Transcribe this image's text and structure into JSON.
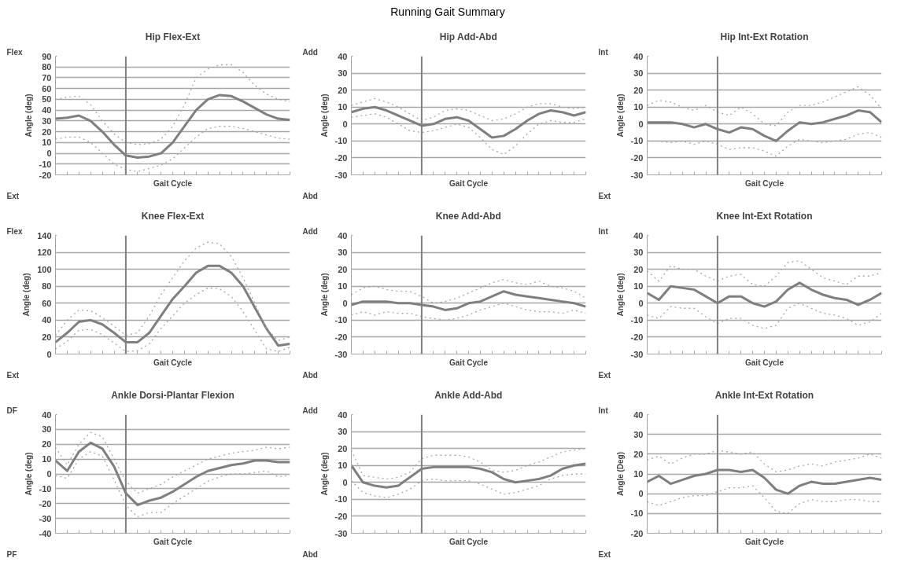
{
  "chart_data": [
    {
      "type": "line",
      "title": "Hip Flex-Ext",
      "xlabel": "Gait Cycle",
      "ylabel": "Angle (deg)",
      "annotations": [
        "Flex",
        "Ext",
        "Running Gait Summary"
      ],
      "categories": [
        null,
        null,
        null,
        null,
        null,
        null,
        null,
        null,
        null,
        null,
        null,
        null,
        null,
        null,
        null,
        null,
        null,
        null,
        null,
        null,
        null
      ],
      "ylim": [
        -20,
        90
      ],
      "yticks": [
        -20,
        -10,
        0,
        10,
        20,
        30,
        40,
        50,
        60,
        70,
        80,
        90
      ],
      "tick_labels": "y",
      "grid": "y",
      "series": [
        {
          "color": "#7f7f7f",
          "line_style": "solid",
          "values": [
            32,
            33,
            35,
            30,
            20,
            8,
            -2,
            -4,
            -3,
            0,
            10,
            25,
            40,
            50,
            54,
            53,
            48,
            42,
            36,
            32,
            31
          ]
        },
        {
          "color": "#a6a6a6",
          "line_style": "dotted",
          "values": [
            50,
            52,
            53,
            45,
            30,
            18,
            10,
            8,
            9,
            13,
            25,
            45,
            70,
            78,
            82,
            82,
            75,
            63,
            55,
            50,
            48
          ]
        },
        {
          "color": "#a6a6a6",
          "line_style": "dotted",
          "values": [
            13,
            15,
            15,
            10,
            0,
            -10,
            -15,
            -17,
            -14,
            -11,
            -5,
            5,
            15,
            23,
            25,
            25,
            23,
            20,
            17,
            14,
            13
          ]
        }
      ]
    },
    {
      "type": "line",
      "title": "Hip Add-Abd",
      "xlabel": "Gait Cycle",
      "ylabel": "Angle (deg)",
      "annotations": [
        "Add",
        "Abd"
      ],
      "categories": [
        null,
        null,
        null,
        null,
        null,
        null,
        null,
        null,
        null,
        null,
        null,
        null,
        null,
        null,
        null,
        null,
        null,
        null,
        null,
        null,
        null
      ],
      "ylim": [
        -30,
        40
      ],
      "yticks": [
        -30,
        -20,
        -10,
        0,
        10,
        20,
        30,
        40
      ],
      "tick_labels": "y",
      "grid": "y",
      "series": [
        {
          "color": "#7f7f7f",
          "line_style": "solid",
          "values": [
            7,
            9,
            10,
            8,
            5,
            2,
            -1,
            0,
            3,
            4,
            2,
            -3,
            -8,
            -7,
            -3,
            2,
            6,
            8,
            7,
            5,
            7
          ]
        },
        {
          "color": "#a6a6a6",
          "line_style": "dotted",
          "values": [
            11,
            13,
            15,
            13,
            10,
            6,
            2,
            4,
            8,
            9,
            8,
            5,
            2,
            3,
            6,
            10,
            12,
            12,
            10,
            9,
            10
          ]
        },
        {
          "color": "#a6a6a6",
          "line_style": "dotted",
          "values": [
            4,
            5,
            6,
            4,
            0,
            -4,
            -5,
            -4,
            -2,
            0,
            -2,
            -8,
            -15,
            -18,
            -13,
            -6,
            0,
            2,
            1,
            1,
            3
          ]
        }
      ]
    },
    {
      "type": "line",
      "title": "Hip Int-Ext Rotation",
      "xlabel": "Gait Cycle",
      "ylabel": "Angle (deg)",
      "annotations": [
        "Int",
        "Ext"
      ],
      "categories": [
        null,
        null,
        null,
        null,
        null,
        null,
        null,
        null,
        null,
        null,
        null,
        null,
        null,
        null,
        null,
        null,
        null,
        null,
        null,
        null,
        null
      ],
      "ylim": [
        -30,
        40
      ],
      "yticks": [
        -30,
        -20,
        -10,
        0,
        10,
        20,
        30,
        40
      ],
      "tick_labels": "y",
      "grid": "y",
      "series": [
        {
          "color": "#7f7f7f",
          "line_style": "solid",
          "values": [
            1,
            1,
            1,
            0,
            -2,
            0,
            -3,
            -5,
            -2,
            -3,
            -7,
            -10,
            -4,
            1,
            0,
            1,
            3,
            5,
            8,
            7,
            1
          ]
        },
        {
          "color": "#a6a6a6",
          "line_style": "dotted",
          "values": [
            11,
            14,
            13,
            10,
            8,
            11,
            7,
            5,
            10,
            6,
            0,
            -1,
            7,
            11,
            11,
            13,
            16,
            19,
            22,
            17,
            9
          ]
        },
        {
          "color": "#a6a6a6",
          "line_style": "dotted",
          "values": [
            -10,
            -10,
            -11,
            -10,
            -12,
            -10,
            -12,
            -15,
            -14,
            -14,
            -16,
            -19,
            -13,
            -9,
            -10,
            -11,
            -10,
            -9,
            -6,
            -5,
            -8
          ]
        }
      ]
    },
    {
      "type": "line",
      "title": "Knee Flex-Ext",
      "xlabel": "Gait Cycle",
      "ylabel": "Angle (deg)",
      "annotations": [
        "Flex",
        "Ext"
      ],
      "categories": [
        null,
        null,
        null,
        null,
        null,
        null,
        null,
        null,
        null,
        null,
        null,
        null,
        null,
        null,
        null,
        null,
        null,
        null,
        null,
        null,
        null
      ],
      "ylim": [
        0,
        140
      ],
      "yticks": [
        0,
        20,
        40,
        60,
        80,
        100,
        120,
        140
      ],
      "tick_labels": "y",
      "grid": "y",
      "series": [
        {
          "color": "#7f7f7f",
          "line_style": "solid",
          "values": [
            14,
            25,
            38,
            40,
            35,
            25,
            14,
            14,
            25,
            45,
            65,
            80,
            96,
            104,
            104,
            96,
            80,
            55,
            30,
            10,
            12
          ]
        },
        {
          "color": "#a6a6a6",
          "line_style": "dotted",
          "values": [
            22,
            40,
            52,
            51,
            43,
            33,
            22,
            25,
            45,
            70,
            90,
            110,
            125,
            132,
            130,
            115,
            90,
            60,
            30,
            16,
            20
          ]
        },
        {
          "color": "#a6a6a6",
          "line_style": "dotted",
          "values": [
            6,
            15,
            28,
            29,
            23,
            13,
            3,
            4,
            12,
            30,
            45,
            60,
            70,
            78,
            77,
            68,
            50,
            28,
            6,
            3,
            8
          ]
        }
      ]
    },
    {
      "type": "line",
      "title": "Knee Add-Abd",
      "xlabel": "Gait Cycle",
      "ylabel": "Angle (deg)",
      "annotations": [
        "Add",
        "Abd"
      ],
      "categories": [
        null,
        null,
        null,
        null,
        null,
        null,
        null,
        null,
        null,
        null,
        null,
        null,
        null,
        null,
        null,
        null,
        null,
        null,
        null,
        null,
        null
      ],
      "ylim": [
        -30,
        40
      ],
      "yticks": [
        -30,
        -20,
        -10,
        0,
        10,
        20,
        30,
        40
      ],
      "tick_labels": "y",
      "grid": "y",
      "series": [
        {
          "color": "#7f7f7f",
          "line_style": "solid",
          "values": [
            -1,
            1,
            1,
            1,
            0,
            0,
            -1,
            -2,
            -4,
            -3,
            0,
            1,
            4,
            7,
            5,
            4,
            3,
            2,
            1,
            0,
            -2
          ]
        },
        {
          "color": "#a6a6a6",
          "line_style": "dotted",
          "values": [
            5,
            9,
            10,
            8,
            7,
            7,
            4,
            0,
            1,
            3,
            6,
            9,
            12,
            14,
            12,
            11,
            13,
            10,
            9,
            7,
            3
          ]
        },
        {
          "color": "#a6a6a6",
          "line_style": "dotted",
          "values": [
            -7,
            -5,
            -7,
            -5,
            -6,
            -6,
            -8,
            -9,
            -10,
            -9,
            -7,
            -4,
            -2,
            0,
            -2,
            -4,
            -5,
            -5,
            -6,
            -4,
            -6
          ]
        }
      ]
    },
    {
      "type": "line",
      "title": "Knee Int-Ext Rotation",
      "xlabel": "Gait Cycle",
      "ylabel": "Angle (deg)",
      "annotations": [
        "Int",
        "Ext"
      ],
      "categories": [
        null,
        null,
        null,
        null,
        null,
        null,
        null,
        null,
        null,
        null,
        null,
        null,
        null,
        null,
        null,
        null,
        null,
        null,
        null,
        null,
        null
      ],
      "ylim": [
        -30,
        40
      ],
      "yticks": [
        -30,
        -20,
        -10,
        0,
        10,
        20,
        30,
        40
      ],
      "tick_labels": "y",
      "grid": "y",
      "series": [
        {
          "color": "#7f7f7f",
          "line_style": "solid",
          "values": [
            6,
            2,
            10,
            9,
            8,
            4,
            0,
            4,
            4,
            0,
            -2,
            1,
            8,
            12,
            8,
            5,
            3,
            2,
            -1,
            2,
            6
          ]
        },
        {
          "color": "#a6a6a6",
          "line_style": "dotted",
          "values": [
            19,
            13,
            22,
            20,
            20,
            16,
            13,
            16,
            17,
            11,
            10,
            16,
            24,
            25,
            20,
            15,
            13,
            11,
            16,
            16,
            18
          ]
        },
        {
          "color": "#a6a6a6",
          "line_style": "dotted",
          "values": [
            -7,
            -9,
            -2,
            -3,
            -3,
            -8,
            -12,
            -9,
            -9,
            -13,
            -15,
            -13,
            -3,
            0,
            -3,
            -6,
            -7,
            -9,
            -13,
            -11,
            -6
          ]
        }
      ]
    },
    {
      "type": "line",
      "title": "Ankle Dorsi-Plantar Flexion",
      "xlabel": "Gait Cycle",
      "ylabel": "Angle (deg)",
      "annotations": [
        "DF",
        "PF"
      ],
      "categories": [
        null,
        null,
        null,
        null,
        null,
        null,
        null,
        null,
        null,
        null,
        null,
        null,
        null,
        null,
        null,
        null,
        null,
        null,
        null,
        null,
        null
      ],
      "ylim": [
        -40,
        40
      ],
      "yticks": [
        -40,
        -30,
        -20,
        -10,
        0,
        10,
        20,
        30,
        40
      ],
      "tick_labels": "y",
      "grid": "y",
      "series": [
        {
          "color": "#7f7f7f",
          "line_style": "solid",
          "values": [
            9,
            2,
            15,
            21,
            17,
            5,
            -13,
            -21,
            -18,
            -16,
            -12,
            -7,
            -2,
            2,
            4,
            6,
            7,
            9,
            9,
            8,
            8
          ]
        },
        {
          "color": "#a6a6a6",
          "line_style": "dotted",
          "values": [
            18,
            6,
            20,
            28,
            25,
            10,
            -5,
            -13,
            -10,
            -7,
            -2,
            2,
            6,
            10,
            12,
            14,
            15,
            16,
            18,
            17,
            18
          ]
        },
        {
          "color": "#a6a6a6",
          "line_style": "dotted",
          "values": [
            -1,
            -3,
            10,
            15,
            12,
            -4,
            -21,
            -29,
            -26,
            -26,
            -20,
            -15,
            -10,
            -5,
            -2,
            0,
            0,
            1,
            2,
            -2,
            -1
          ]
        }
      ]
    },
    {
      "type": "line",
      "title": "Ankle Add-Abd",
      "xlabel": "Gait Cycle",
      "ylabel": "Angle (deg)",
      "annotations": [
        "Add",
        "Abd"
      ],
      "categories": [
        null,
        null,
        null,
        null,
        null,
        null,
        null,
        null,
        null,
        null,
        null,
        null,
        null,
        null,
        null,
        null,
        null,
        null,
        null,
        null,
        null
      ],
      "ylim": [
        -30,
        40
      ],
      "yticks": [
        -30,
        -20,
        -10,
        0,
        10,
        20,
        30,
        40
      ],
      "tick_labels": "y",
      "grid": "y",
      "series": [
        {
          "color": "#7f7f7f",
          "line_style": "solid",
          "values": [
            10,
            0,
            -2,
            -3,
            -2,
            3,
            8,
            9,
            9,
            9,
            9,
            8,
            6,
            2,
            0,
            1,
            2,
            4,
            8,
            10,
            11
          ]
        },
        {
          "color": "#a6a6a6",
          "line_style": "dotted",
          "values": [
            19,
            4,
            3,
            2,
            3,
            6,
            14,
            16,
            16,
            16,
            15,
            12,
            7,
            6,
            7,
            10,
            12,
            15,
            18,
            19,
            20
          ]
        },
        {
          "color": "#a6a6a6",
          "line_style": "dotted",
          "values": [
            1,
            -6,
            -8,
            -9,
            -7,
            -4,
            1,
            2,
            1,
            1,
            1,
            -1,
            -4,
            -7,
            -6,
            -4,
            -2,
            2,
            4,
            5,
            5
          ]
        }
      ]
    },
    {
      "type": "line",
      "title": "Ankle Int-Ext Rotation",
      "xlabel": "Gait Cycle",
      "ylabel": "Angle (Deg)",
      "annotations": [
        "Int",
        "Ext"
      ],
      "categories": [
        null,
        null,
        null,
        null,
        null,
        null,
        null,
        null,
        null,
        null,
        null,
        null,
        null,
        null,
        null,
        null,
        null,
        null,
        null,
        null,
        null
      ],
      "ylim": [
        -20,
        40
      ],
      "yticks": [
        -20,
        -10,
        0,
        10,
        20,
        30,
        40
      ],
      "tick_labels": "y",
      "grid": "y",
      "series": [
        {
          "color": "#7f7f7f",
          "line_style": "solid",
          "values": [
            6,
            9,
            5,
            7,
            9,
            10,
            12,
            12,
            11,
            12,
            8,
            2,
            0,
            4,
            6,
            5,
            5,
            6,
            7,
            8,
            7
          ]
        },
        {
          "color": "#a6a6a6",
          "line_style": "dotted",
          "values": [
            17,
            19,
            15,
            18,
            20,
            20,
            22,
            21,
            20,
            21,
            15,
            11,
            12,
            14,
            15,
            14,
            16,
            17,
            18,
            20,
            18
          ]
        },
        {
          "color": "#a6a6a6",
          "line_style": "dotted",
          "values": [
            -4,
            -6,
            -4,
            -2,
            -1,
            -1,
            1,
            3,
            3,
            4,
            -2,
            -9,
            -10,
            -5,
            -3,
            -4,
            -4,
            -3,
            -3,
            -4,
            -4
          ]
        }
      ]
    }
  ]
}
